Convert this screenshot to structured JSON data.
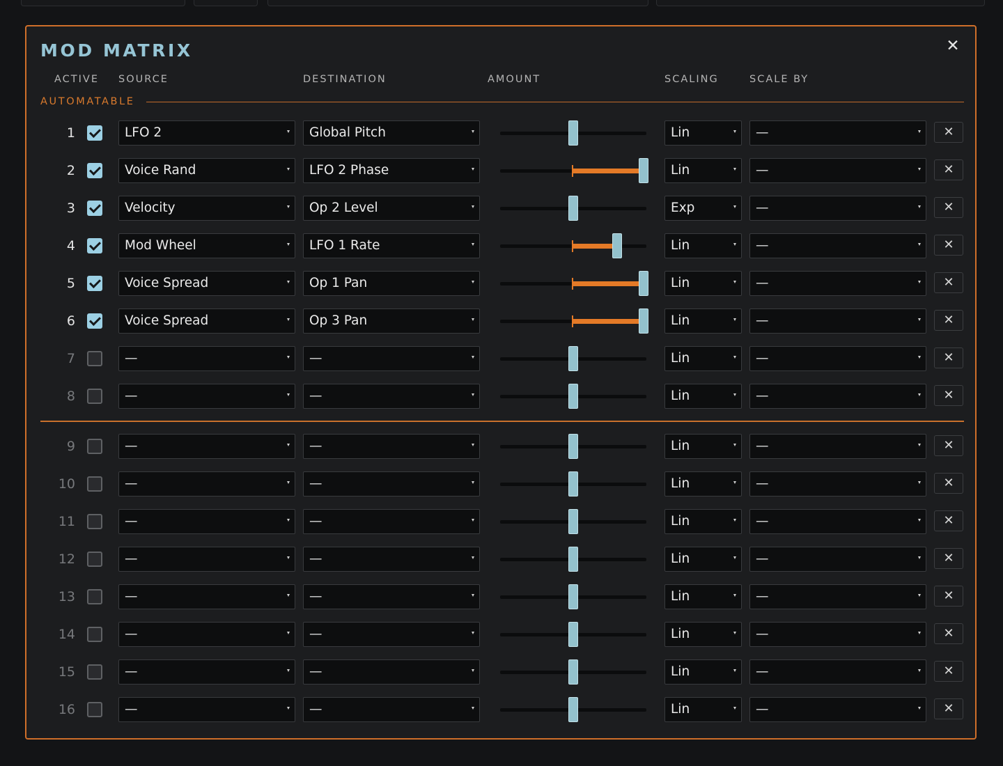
{
  "panel": {
    "title": "MOD MATRIX",
    "close_glyph": "✕"
  },
  "headers": {
    "active": "ACTIVE",
    "source": "SOURCE",
    "destination": "DESTINATION",
    "amount": "AMOUNT",
    "scaling": "SCALING",
    "scale_by": "SCALE BY"
  },
  "section_label": "AUTOMATABLE",
  "colors": {
    "accent": "#e47a27",
    "title": "#96c5d5",
    "thumb": "#93c1cc"
  },
  "icons": {
    "row_remove": "close-icon",
    "dropdown": "caret-down-icon",
    "active": "checkbox-icon"
  },
  "rows": [
    {
      "num": "1",
      "active": true,
      "source": "LFO 2",
      "destination": "Global Pitch",
      "amount": 0,
      "scaling": "Lin",
      "scale_by": "—",
      "remove": "✕"
    },
    {
      "num": "2",
      "active": true,
      "source": "Voice Rand",
      "destination": "LFO 2 Phase",
      "amount": 1.0,
      "scaling": "Lin",
      "scale_by": "—",
      "remove": "✕"
    },
    {
      "num": "3",
      "active": true,
      "source": "Velocity",
      "destination": "Op 2 Level",
      "amount": 0,
      "scaling": "Exp",
      "scale_by": "—",
      "remove": "✕"
    },
    {
      "num": "4",
      "active": true,
      "source": "Mod Wheel",
      "destination": "LFO 1 Rate",
      "amount": 0.6,
      "scaling": "Lin",
      "scale_by": "—",
      "remove": "✕"
    },
    {
      "num": "5",
      "active": true,
      "source": "Voice Spread",
      "destination": "Op 1 Pan",
      "amount": 1.0,
      "scaling": "Lin",
      "scale_by": "—",
      "remove": "✕"
    },
    {
      "num": "6",
      "active": true,
      "source": "Voice Spread",
      "destination": "Op 3 Pan",
      "amount": 1.0,
      "scaling": "Lin",
      "scale_by": "—",
      "remove": "✕"
    },
    {
      "num": "7",
      "active": false,
      "source": "—",
      "destination": "—",
      "amount": 0,
      "scaling": "Lin",
      "scale_by": "—",
      "remove": "✕"
    },
    {
      "num": "8",
      "active": false,
      "source": "—",
      "destination": "—",
      "amount": 0,
      "scaling": "Lin",
      "scale_by": "—",
      "remove": "✕"
    },
    {
      "num": "9",
      "active": false,
      "source": "—",
      "destination": "—",
      "amount": 0,
      "scaling": "Lin",
      "scale_by": "—",
      "remove": "✕"
    },
    {
      "num": "10",
      "active": false,
      "source": "—",
      "destination": "—",
      "amount": 0,
      "scaling": "Lin",
      "scale_by": "—",
      "remove": "✕"
    },
    {
      "num": "11",
      "active": false,
      "source": "—",
      "destination": "—",
      "amount": 0,
      "scaling": "Lin",
      "scale_by": "—",
      "remove": "✕"
    },
    {
      "num": "12",
      "active": false,
      "source": "—",
      "destination": "—",
      "amount": 0,
      "scaling": "Lin",
      "scale_by": "—",
      "remove": "✕"
    },
    {
      "num": "13",
      "active": false,
      "source": "—",
      "destination": "—",
      "amount": 0,
      "scaling": "Lin",
      "scale_by": "—",
      "remove": "✕"
    },
    {
      "num": "14",
      "active": false,
      "source": "—",
      "destination": "—",
      "amount": 0,
      "scaling": "Lin",
      "scale_by": "—",
      "remove": "✕"
    },
    {
      "num": "15",
      "active": false,
      "source": "—",
      "destination": "—",
      "amount": 0,
      "scaling": "Lin",
      "scale_by": "—",
      "remove": "✕"
    },
    {
      "num": "16",
      "active": false,
      "source": "—",
      "destination": "—",
      "amount": 0,
      "scaling": "Lin",
      "scale_by": "—",
      "remove": "✕"
    }
  ]
}
